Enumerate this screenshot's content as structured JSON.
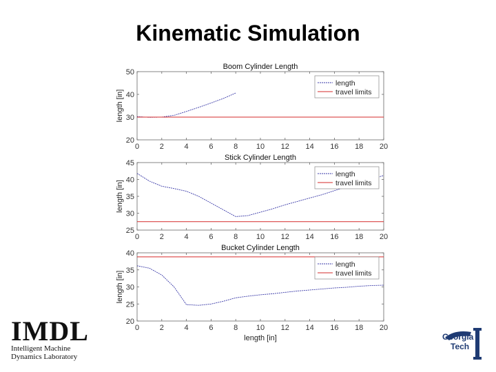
{
  "slide": {
    "title": "Kinematic Simulation"
  },
  "chart_data": [
    {
      "type": "line",
      "title": "Boom Cylinder Length",
      "ylabel": "length [in]",
      "xlabel": "",
      "xlim": [
        0,
        20
      ],
      "ylim": [
        20,
        50
      ],
      "xticks": [
        "0",
        "2",
        "4",
        "6",
        "8",
        "10",
        "12",
        "14",
        "16",
        "18",
        "20"
      ],
      "yticks": [
        "20",
        "30",
        "40",
        "50"
      ],
      "legend": {
        "position": "top-right",
        "entries": [
          "length",
          "travel limits"
        ]
      },
      "series": [
        {
          "name": "length",
          "color": "#3a3aa8",
          "x": [
            0,
            1,
            2,
            3,
            4,
            5,
            6,
            7,
            8
          ],
          "y": [
            30.2,
            29.9,
            30.0,
            30.8,
            32.5,
            34.3,
            36.2,
            38.2,
            40.6
          ]
        },
        {
          "name": "travel limits",
          "color": "#d62828",
          "x": [
            0,
            20
          ],
          "y": [
            30,
            30
          ]
        }
      ]
    },
    {
      "type": "line",
      "title": "Stick Cylinder Length",
      "ylabel": "length [in]",
      "xlabel": "",
      "xlim": [
        0,
        20
      ],
      "ylim": [
        25,
        45
      ],
      "xticks": [
        "0",
        "2",
        "4",
        "6",
        "8",
        "10",
        "12",
        "14",
        "16",
        "18",
        "20"
      ],
      "yticks": [
        "25",
        "30",
        "35",
        "40",
        "45"
      ],
      "legend": {
        "position": "top-right",
        "entries": [
          "length",
          "travel limits"
        ]
      },
      "series": [
        {
          "name": "length",
          "color": "#3a3aa8",
          "x": [
            0,
            1,
            2,
            3,
            4,
            5,
            6,
            7,
            8,
            9,
            10,
            11,
            12,
            13,
            14,
            15,
            16,
            17,
            18,
            19,
            20
          ],
          "y": [
            41.8,
            39.5,
            38.0,
            37.3,
            36.5,
            35.0,
            33.0,
            31.0,
            29.0,
            29.3,
            30.3,
            31.3,
            32.5,
            33.5,
            34.5,
            35.5,
            36.7,
            37.8,
            39.0,
            40.0,
            41.2
          ]
        },
        {
          "name": "travel limits",
          "color": "#d62828",
          "x": [
            0,
            20
          ],
          "y": [
            27.5,
            27.5
          ]
        }
      ]
    },
    {
      "type": "line",
      "title": "Bucket Cylinder Length",
      "ylabel": "length [in]",
      "xlabel": "length [in]",
      "xlim": [
        0,
        20
      ],
      "ylim": [
        20,
        40
      ],
      "xticks": [
        "0",
        "2",
        "4",
        "6",
        "8",
        "10",
        "12",
        "14",
        "16",
        "18",
        "20"
      ],
      "yticks": [
        "20",
        "25",
        "30",
        "35",
        "40"
      ],
      "legend": {
        "position": "top-right",
        "entries": [
          "length",
          "travel limits"
        ]
      },
      "series": [
        {
          "name": "length",
          "color": "#3a3aa8",
          "x": [
            0,
            1,
            2,
            3,
            4,
            5,
            6,
            7,
            8,
            9,
            10,
            11,
            12,
            13,
            14,
            15,
            16,
            17,
            18,
            19,
            20
          ],
          "y": [
            36.2,
            35.5,
            33.5,
            30.0,
            24.8,
            24.6,
            25.0,
            25.8,
            26.8,
            27.3,
            27.7,
            28.0,
            28.4,
            28.8,
            29.1,
            29.4,
            29.7,
            29.9,
            30.2,
            30.4,
            30.5
          ]
        },
        {
          "name": "travel limits",
          "color": "#d62828",
          "x": [
            0,
            20
          ],
          "y": [
            38.8,
            38.8
          ]
        }
      ]
    }
  ],
  "logos": {
    "imdl": {
      "big": "IMDL",
      "line1": "Intelligent Machine",
      "line2": "Dynamics Laboratory"
    },
    "gt": {
      "line1": "Georgia",
      "line2": "Tech"
    }
  }
}
